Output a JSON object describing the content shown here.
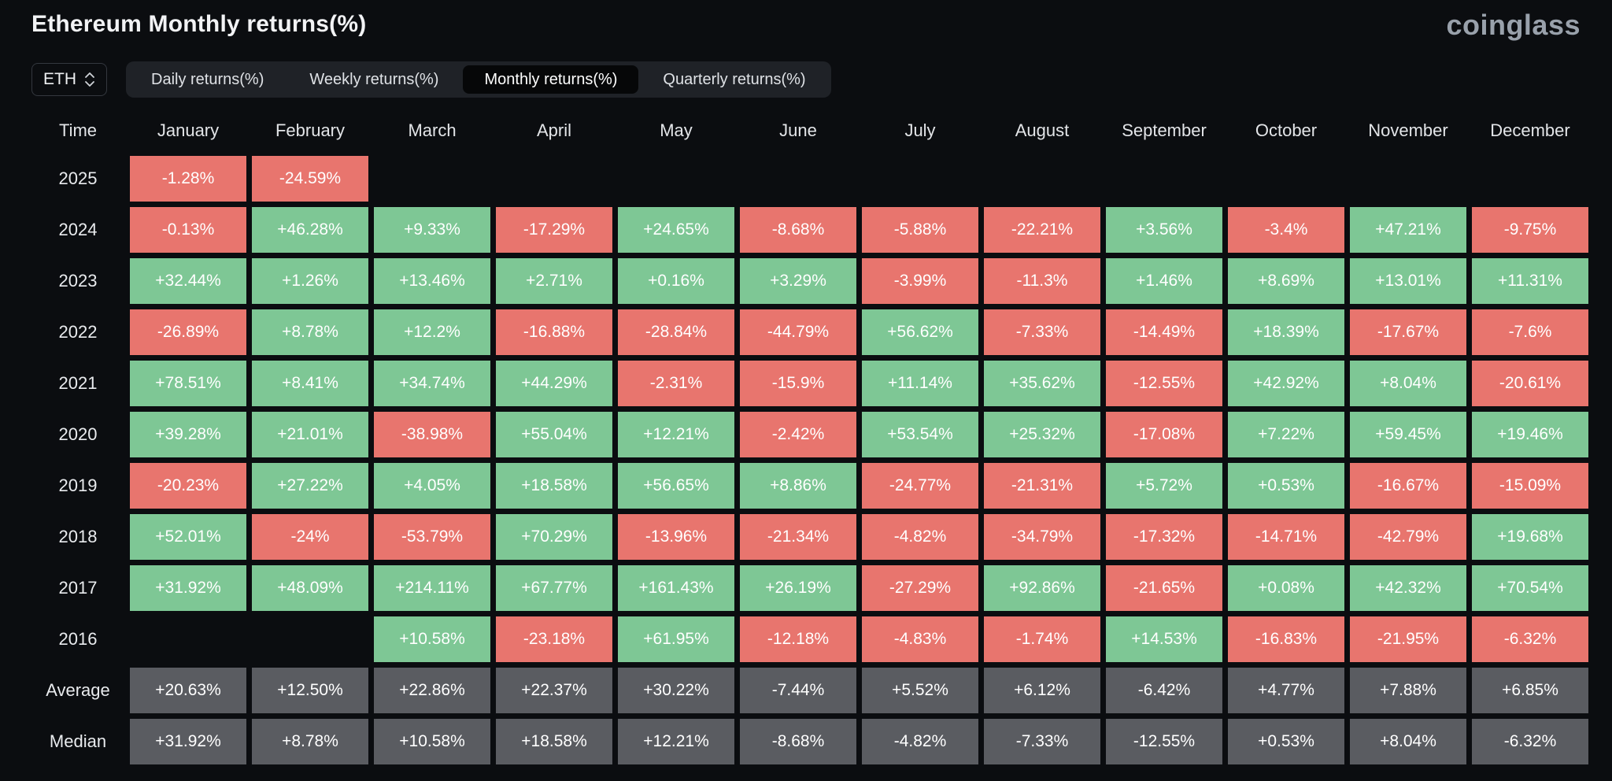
{
  "page": {
    "title": "Ethereum Monthly returns(%)",
    "logo": "coinglass"
  },
  "controls": {
    "symbol_select": {
      "value": "ETH",
      "icon": "updown-chevron"
    },
    "tabs": [
      {
        "label": "Daily returns(%)",
        "active": false
      },
      {
        "label": "Weekly returns(%)",
        "active": false
      },
      {
        "label": "Monthly returns(%)",
        "active": true
      },
      {
        "label": "Quarterly returns(%)",
        "active": false
      }
    ]
  },
  "colors": {
    "positive": "#7ec795",
    "negative": "#e8756e",
    "neutral": "#5a5c61",
    "background": "#0b0d10",
    "tabbar": "#1f2227",
    "active_tab": "#060708"
  },
  "chart_data": {
    "type": "heatmap",
    "title": "Ethereum Monthly returns(%)",
    "legend_note": "green = positive month, red = negative month, gray = summary rows",
    "columns": [
      "Time",
      "January",
      "February",
      "March",
      "April",
      "May",
      "June",
      "July",
      "August",
      "September",
      "October",
      "November",
      "December"
    ],
    "rows": [
      {
        "label": "2025",
        "type": "year",
        "cells": [
          "-1.28%",
          "-24.59%",
          "",
          "",
          "",
          "",
          "",
          "",
          "",
          "",
          "",
          ""
        ]
      },
      {
        "label": "2024",
        "type": "year",
        "cells": [
          "-0.13%",
          "+46.28%",
          "+9.33%",
          "-17.29%",
          "+24.65%",
          "-8.68%",
          "-5.88%",
          "-22.21%",
          "+3.56%",
          "-3.4%",
          "+47.21%",
          "-9.75%"
        ]
      },
      {
        "label": "2023",
        "type": "year",
        "cells": [
          "+32.44%",
          "+1.26%",
          "+13.46%",
          "+2.71%",
          "+0.16%",
          "+3.29%",
          "-3.99%",
          "-11.3%",
          "+1.46%",
          "+8.69%",
          "+13.01%",
          "+11.31%"
        ]
      },
      {
        "label": "2022",
        "type": "year",
        "cells": [
          "-26.89%",
          "+8.78%",
          "+12.2%",
          "-16.88%",
          "-28.84%",
          "-44.79%",
          "+56.62%",
          "-7.33%",
          "-14.49%",
          "+18.39%",
          "-17.67%",
          "-7.6%"
        ]
      },
      {
        "label": "2021",
        "type": "year",
        "cells": [
          "+78.51%",
          "+8.41%",
          "+34.74%",
          "+44.29%",
          "-2.31%",
          "-15.9%",
          "+11.14%",
          "+35.62%",
          "-12.55%",
          "+42.92%",
          "+8.04%",
          "-20.61%"
        ]
      },
      {
        "label": "2020",
        "type": "year",
        "cells": [
          "+39.28%",
          "+21.01%",
          "-38.98%",
          "+55.04%",
          "+12.21%",
          "-2.42%",
          "+53.54%",
          "+25.32%",
          "-17.08%",
          "+7.22%",
          "+59.45%",
          "+19.46%"
        ]
      },
      {
        "label": "2019",
        "type": "year",
        "cells": [
          "-20.23%",
          "+27.22%",
          "+4.05%",
          "+18.58%",
          "+56.65%",
          "+8.86%",
          "-24.77%",
          "-21.31%",
          "+5.72%",
          "+0.53%",
          "-16.67%",
          "-15.09%"
        ]
      },
      {
        "label": "2018",
        "type": "year",
        "cells": [
          "+52.01%",
          "-24%",
          "-53.79%",
          "+70.29%",
          "-13.96%",
          "-21.34%",
          "-4.82%",
          "-34.79%",
          "-17.32%",
          "-14.71%",
          "-42.79%",
          "+19.68%"
        ]
      },
      {
        "label": "2017",
        "type": "year",
        "cells": [
          "+31.92%",
          "+48.09%",
          "+214.11%",
          "+67.77%",
          "+161.43%",
          "+26.19%",
          "-27.29%",
          "+92.86%",
          "-21.65%",
          "+0.08%",
          "+42.32%",
          "+70.54%"
        ]
      },
      {
        "label": "2016",
        "type": "year",
        "cells": [
          "",
          "",
          "+10.58%",
          "-23.18%",
          "+61.95%",
          "-12.18%",
          "-4.83%",
          "-1.74%",
          "+14.53%",
          "-16.83%",
          "-21.95%",
          "-6.32%"
        ]
      },
      {
        "label": "Average",
        "type": "summary",
        "cells": [
          "+20.63%",
          "+12.50%",
          "+22.86%",
          "+22.37%",
          "+30.22%",
          "-7.44%",
          "+5.52%",
          "+6.12%",
          "-6.42%",
          "+4.77%",
          "+7.88%",
          "+6.85%"
        ]
      },
      {
        "label": "Median",
        "type": "summary",
        "cells": [
          "+31.92%",
          "+8.78%",
          "+10.58%",
          "+18.58%",
          "+12.21%",
          "-8.68%",
          "-4.82%",
          "-7.33%",
          "-12.55%",
          "+0.53%",
          "+8.04%",
          "-6.32%"
        ]
      }
    ]
  }
}
